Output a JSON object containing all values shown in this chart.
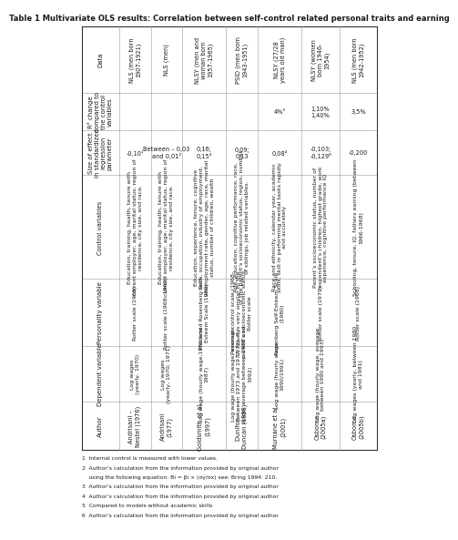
{
  "title": "Table 1 Multivariate OLS results: Correlation between self-control related personal traits and earning",
  "col_headers": [
    "Author",
    "Dependent variable",
    "Personality variable",
    "Control variables",
    "Size of effect\nin standardized\nregression\nparameter",
    "R² change\ncompared to\nthe control\nvariables",
    "Data"
  ],
  "rows": [
    {
      "author": "Andrisani –\nNestel (1976)",
      "dep_var": "Log wages\n(yearly, 1970)",
      "pers_var": "Rotter scale (1969)",
      "control": "Education, training, health, tenure with\ncurrent employer, age, marital status, region of\nresidence, city size, and race.",
      "effect": "-0,10¹",
      "r2_change": "",
      "data": "NLS (men born\n1907-1921)"
    },
    {
      "author": "Andrisani\n(1977)",
      "dep_var": "Log wages\n(yearly, 1970; 1971)",
      "pers_var": "Rotter scale (1968; 1969)",
      "control": "Education, training, health, tenure with\ncurrent employer, age, marital status, region of\nresidence, city size, and race.",
      "effect": "Between – 0,03\nand 0,01²",
      "r2_change": "",
      "data": "NLS (men)"
    },
    {
      "author": "Goldsmith et al.\n(1997)",
      "dep_var": "Log wage (hourly wage,1980 and\n1987)",
      "pers_var": "Predicted Rosenberg Self-\nEsteem Scale (1980)",
      "control": "Education, experience, tenure, cognitive\nskills, occupation, industry of employment,\nunemployment rate, gender, age, race, marital\nstatus, number of children, wealth",
      "effect": "0,16;\n0,15³",
      "r2_change": "",
      "data": "NLSY (men and\nwoman born\n1957-1965)"
    },
    {
      "author": "Dunifon –\nDuncan (1998)",
      "dep_var": "Log wage (hourly wage, average\nbetween 1973 and 1977; hourly\nwage, average between 1988 and\n1992)",
      "pers_var": "Personal control scale (1968-\n1972). It is very similar to the\nparent’s socioeconomic status,\nRotter scale",
      "control": "Age, education, cognitive performance, race,\nof the parent’s socioeconomic status, region, number\nof siblings, job related variables.",
      "effect": "0,09;\n0,13",
      "r2_change": "",
      "data": "PSID (men born\n1943-1951)"
    },
    {
      "author": "Murnane et al.\n(2001)",
      "dep_var": "Log wage (hourly wage,\n1990/1991)",
      "pers_var": "Rosenberg Self-Esteem Scale\n(1980)",
      "control": "Race and ethnicity, calendar year, academic\nskills, skill in performing mental tasks rapidly\nand accurately",
      "effect": "0,08⁴",
      "r2_change": "4%⁵",
      "data": "NLSY (27/28\nyears old man)"
    },
    {
      "author": "Osborne\n(2005a)",
      "dep_var": "Log wage (hourly wage, average\nbetween 1990 and 1993)",
      "pers_var": "Rotter scale (1970)",
      "control": "Parent’s socioeconomic status, number of\nrespondent’s children, highest grade, work\nexperience, cognitive performance IQ",
      "effect": "-0,103;\n-0,129⁶",
      "r2_change": "1,10%\n1,40%",
      "data": "NLSY (women\nborn 1946-\n1954)"
    },
    {
      "author": "Osborne\n(2005b)",
      "dep_var": "Log wages (yearly, between 1980\nand 1981)",
      "pers_var": "Rotter scale (1968)",
      "control": "Schooling, tenure, IQ, fathers earning (between\n1966-1968)",
      "effect": "-0,200",
      "r2_change": "3,5%",
      "data": "NLS (men born\n1942-1952)"
    }
  ],
  "footnotes": [
    "1  Internal control is measured with lower values.",
    "2  Author’s calculation from the information provided by original author",
    "    using the following equation: Bi = βi × (σy/σx) see: Bring 1994: 210.",
    "3  Author’s calculation from the information provided by original author",
    "4  Author’s calculation from the information provided by original author",
    "5  Compared to models without academic skills",
    "6  Author’s calculation from the information provided by original author"
  ],
  "bg_color": "#ffffff",
  "line_color": "#999999",
  "text_color": "#1a1a1a",
  "font_size": 4.8,
  "header_font_size": 5.0,
  "title_font_size": 6.0,
  "footnote_font_size": 4.3
}
